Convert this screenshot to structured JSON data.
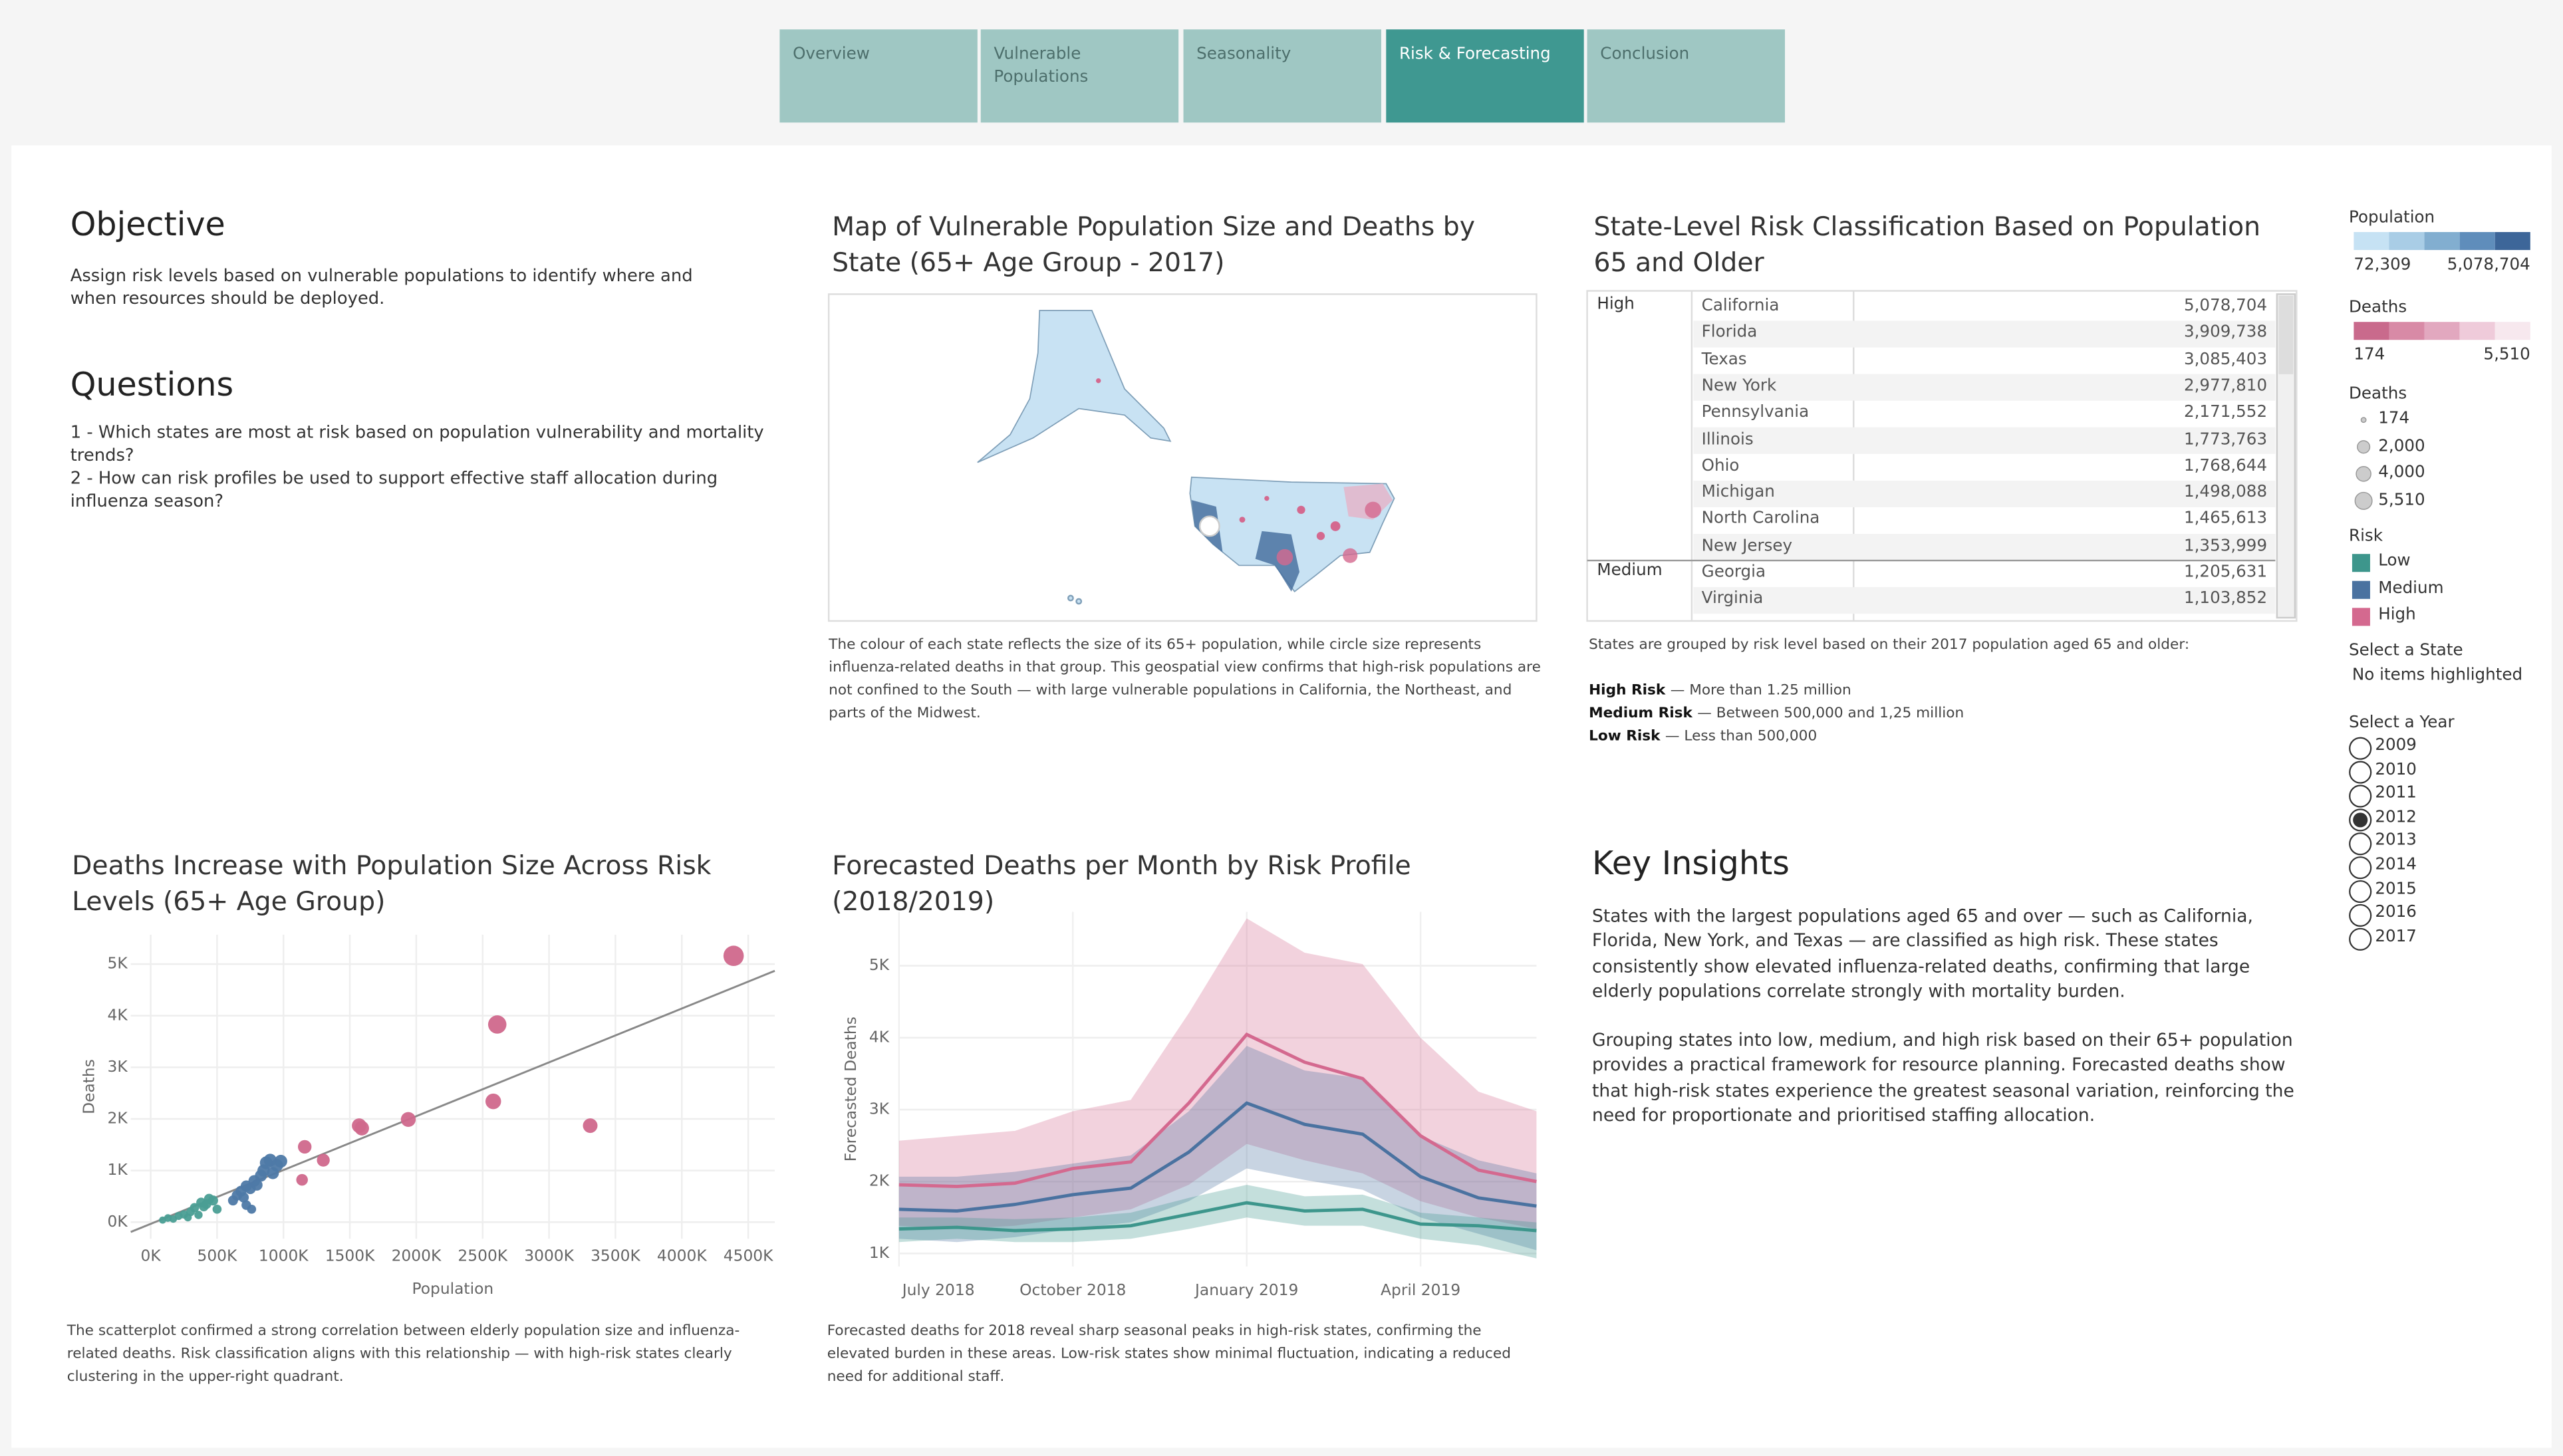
{
  "tabs": [
    "Overview",
    "Vulnerable Populations",
    "Seasonality",
    "Risk & Forecasting",
    "Conclusion"
  ],
  "active_tab": "Risk & Forecasting",
  "objective": {
    "title": "Objective",
    "text": "Assign risk levels based on vulnerable populations to identify where and when resources should be deployed."
  },
  "questions": {
    "title": "Questions",
    "items": [
      "1 - Which states are most at risk based on population vulnerability and mortality trends?",
      "2 - How can risk profiles be used to support effective staff allocation during influenza season?"
    ]
  },
  "map": {
    "title": "Map of Vulnerable Population Size and Deaths by State (65+ Age Group - 2017)",
    "caption": "The colour of each state reflects the size of its 65+ population, while circle size represents influenza-related deaths in that group. This geospatial view confirms that high-risk populations are not confined to the South — with large vulnerable populations in California, the Northeast, and parts of the Midwest."
  },
  "table": {
    "title": "State-Level Risk Classification Based on Population 65 and Older",
    "groups": [
      {
        "label": "High",
        "rows": [
          [
            "California",
            "5,078,704"
          ],
          [
            "Florida",
            "3,909,738"
          ],
          [
            "Texas",
            "3,085,403"
          ],
          [
            "New York",
            "2,977,810"
          ],
          [
            "Pennsylvania",
            "2,171,552"
          ],
          [
            "Illinois",
            "1,773,763"
          ],
          [
            "Ohio",
            "1,768,644"
          ],
          [
            "Michigan",
            "1,498,088"
          ],
          [
            "North Carolina",
            "1,465,613"
          ],
          [
            "New Jersey",
            "1,353,999"
          ]
        ]
      },
      {
        "label": "Medium",
        "rows": [
          [
            "Georgia",
            "1,205,631"
          ],
          [
            "Virginia",
            "1,103,852"
          ]
        ]
      }
    ],
    "caption": "States are grouped by risk level based on their 2017 population aged 65 and older:",
    "definitions": [
      [
        "High Risk",
        "— More than 1.25 million"
      ],
      [
        "Medium Risk",
        "— Between 500,000 and 1,25 million"
      ],
      [
        "Low Risk",
        "— Less than 500,000"
      ]
    ]
  },
  "legends": {
    "population": {
      "title": "Population",
      "min": "72,309",
      "max": "5,078,704"
    },
    "deaths_color": {
      "title": "Deaths",
      "min": "174",
      "max": "5,510"
    },
    "deaths_size": {
      "title": "Deaths",
      "items": [
        "174",
        "2,000",
        "4,000",
        "5,510"
      ]
    },
    "risk_title": "Risk"
  },
  "filters": {
    "state_title": "Select a State",
    "state_value": "No items highlighted",
    "year_title": "Select a Year",
    "years": [
      "2009",
      "2010",
      "2011",
      "2012",
      "2013",
      "2014",
      "2015",
      "2016",
      "2017"
    ],
    "selected": "2012"
  },
  "insights": {
    "title": "Key Insights",
    "paragraphs": [
      "States with the largest populations aged 65 and over — such as California, Florida, New York, and Texas — are classified as high risk. These states consistently show elevated influenza-related deaths, confirming that large elderly populations correlate strongly with mortality burden.",
      "Grouping states into low, medium, and high risk based on their 65+ population provides a practical framework for resource planning. Forecasted deaths show that high-risk states experience the greatest seasonal variation, reinforcing the need for proportionate and prioritised staffing allocation."
    ]
  },
  "chart_data": [
    {
      "type": "scatter",
      "title": "Deaths Increase with Population Size Across Risk Levels (65+ Age Group)",
      "x_label": "Population",
      "y_label": "Deaths",
      "xlim": [
        -150000,
        4700000
      ],
      "ylim": [
        -320,
        5570
      ],
      "grid": true,
      "xticks": [
        {
          "value": 0,
          "label": "0K"
        },
        {
          "value": 500000,
          "label": "500K"
        },
        {
          "value": 1000000,
          "label": "1000K"
        },
        {
          "value": 1500000,
          "label": "1500K"
        },
        {
          "value": 2000000,
          "label": "2000K"
        },
        {
          "value": 2500000,
          "label": "2500K"
        },
        {
          "value": 3000000,
          "label": "3000K"
        },
        {
          "value": 3500000,
          "label": "3500K"
        },
        {
          "value": 4000000,
          "label": "4000K"
        },
        {
          "value": 4500000,
          "label": "4500K"
        }
      ],
      "yticks": [
        {
          "value": 0,
          "label": "0K"
        },
        {
          "value": 1000,
          "label": "1K"
        },
        {
          "value": 2000,
          "label": "2K"
        },
        {
          "value": 3000,
          "label": "3K"
        },
        {
          "value": 4000,
          "label": "4K"
        },
        {
          "value": 5000,
          "label": "5K"
        }
      ],
      "series": [
        {
          "color": "#4a9e94",
          "x": [
            90000,
            130000,
            170000,
            210000,
            250000,
            300000,
            330000,
            360000,
            400000,
            420000,
            440000,
            470000,
            500000,
            380000,
            280000
          ],
          "values": [
            40,
            80,
            60,
            120,
            150,
            200,
            280,
            140,
            300,
            350,
            450,
            420,
            250,
            380,
            90
          ]
        },
        {
          "color": "#4e79a7",
          "x": [
            620000,
            650000,
            680000,
            700000,
            720000,
            750000,
            780000,
            800000,
            830000,
            850000,
            870000,
            900000,
            920000,
            950000,
            980000,
            720000,
            760000
          ],
          "values": [
            420,
            520,
            600,
            480,
            700,
            650,
            800,
            720,
            900,
            1000,
            1150,
            1200,
            950,
            1100,
            1180,
            330,
            250
          ]
        },
        {
          "color": "#d0688c",
          "x": [
            4390000,
            2610000,
            2580000,
            3310000,
            1940000,
            1570000,
            1590000,
            1160000,
            1300000,
            1140000
          ],
          "values": [
            5160,
            3830,
            2340,
            1870,
            1990,
            1870,
            1820,
            1460,
            1200,
            820
          ]
        }
      ],
      "trend": {
        "color": "#888888",
        "x": [
          -150000,
          4700000
        ],
        "values": [
          -190,
          4870
        ]
      },
      "caption": "The scatterplot confirmed a strong correlation between elderly population size and influenza-related deaths. Risk classification aligns with this relationship  — with high-risk states clearly clustering in the upper-right quadrant."
    },
    {
      "type": "band-line",
      "title": "Forecasted Deaths per Month by Risk Profile (2018/2019)",
      "y_label": "Forecasted Deaths",
      "categories": [
        "July 2018",
        null,
        null,
        "October 2018",
        null,
        null,
        "January 2019",
        null,
        null,
        "April 2019",
        null,
        null
      ],
      "ylim": [
        820,
        5750
      ],
      "yticks": [
        {
          "value": 1000,
          "label": "1K"
        },
        {
          "value": 2000,
          "label": "2K"
        },
        {
          "value": 3000,
          "label": "3K"
        },
        {
          "value": 4000,
          "label": "4K"
        },
        {
          "value": 5000,
          "label": "5K"
        }
      ],
      "grid": true,
      "series": [
        {
          "name": "Low",
          "color": "#3d968c",
          "values": [
            1341,
            1364,
            1318,
            1341,
            1386,
            1545,
            1705,
            1591,
            1614,
            1409,
            1386,
            1318
          ],
          "upper": [
            1500,
            1500,
            1477,
            1500,
            1568,
            1773,
            1955,
            1795,
            1818,
            1568,
            1500,
            1432
          ],
          "lower": [
            1159,
            1205,
            1159,
            1159,
            1205,
            1341,
            1500,
            1386,
            1386,
            1205,
            1114,
            932
          ]
        },
        {
          "name": "Medium",
          "color": "#4a72a0",
          "values": [
            1614,
            1591,
            1682,
            1818,
            1909,
            2409,
            3091,
            2795,
            2659,
            2068,
            1773,
            1659
          ],
          "upper": [
            2068,
            2068,
            2136,
            2250,
            2364,
            2977,
            3886,
            3545,
            3432,
            2636,
            2295,
            2114
          ],
          "lower": [
            1205,
            1159,
            1227,
            1341,
            1432,
            1727,
            2182,
            2023,
            1886,
            1500,
            1273,
            1045
          ]
        },
        {
          "name": "High",
          "color": "#d4698f",
          "values": [
            1955,
            1932,
            1977,
            2182,
            2273,
            3091,
            4045,
            3659,
            3432,
            2636,
            2159,
            2000
          ],
          "upper": [
            2568,
            2636,
            2705,
            2977,
            3136,
            4341,
            5659,
            5182,
            5023,
            4000,
            3250,
            2977
          ],
          "lower": [
            1386,
            1341,
            1386,
            1500,
            1614,
            1955,
            2523,
            2295,
            2114,
            1727,
            1500,
            1341
          ]
        }
      ],
      "caption": "Forecasted deaths for 2018 reveal sharp seasonal peaks in high-risk states, confirming the elevated burden in these areas. Low-risk states show minimal fluctuation, indicating a reduced need for additional staff."
    }
  ]
}
